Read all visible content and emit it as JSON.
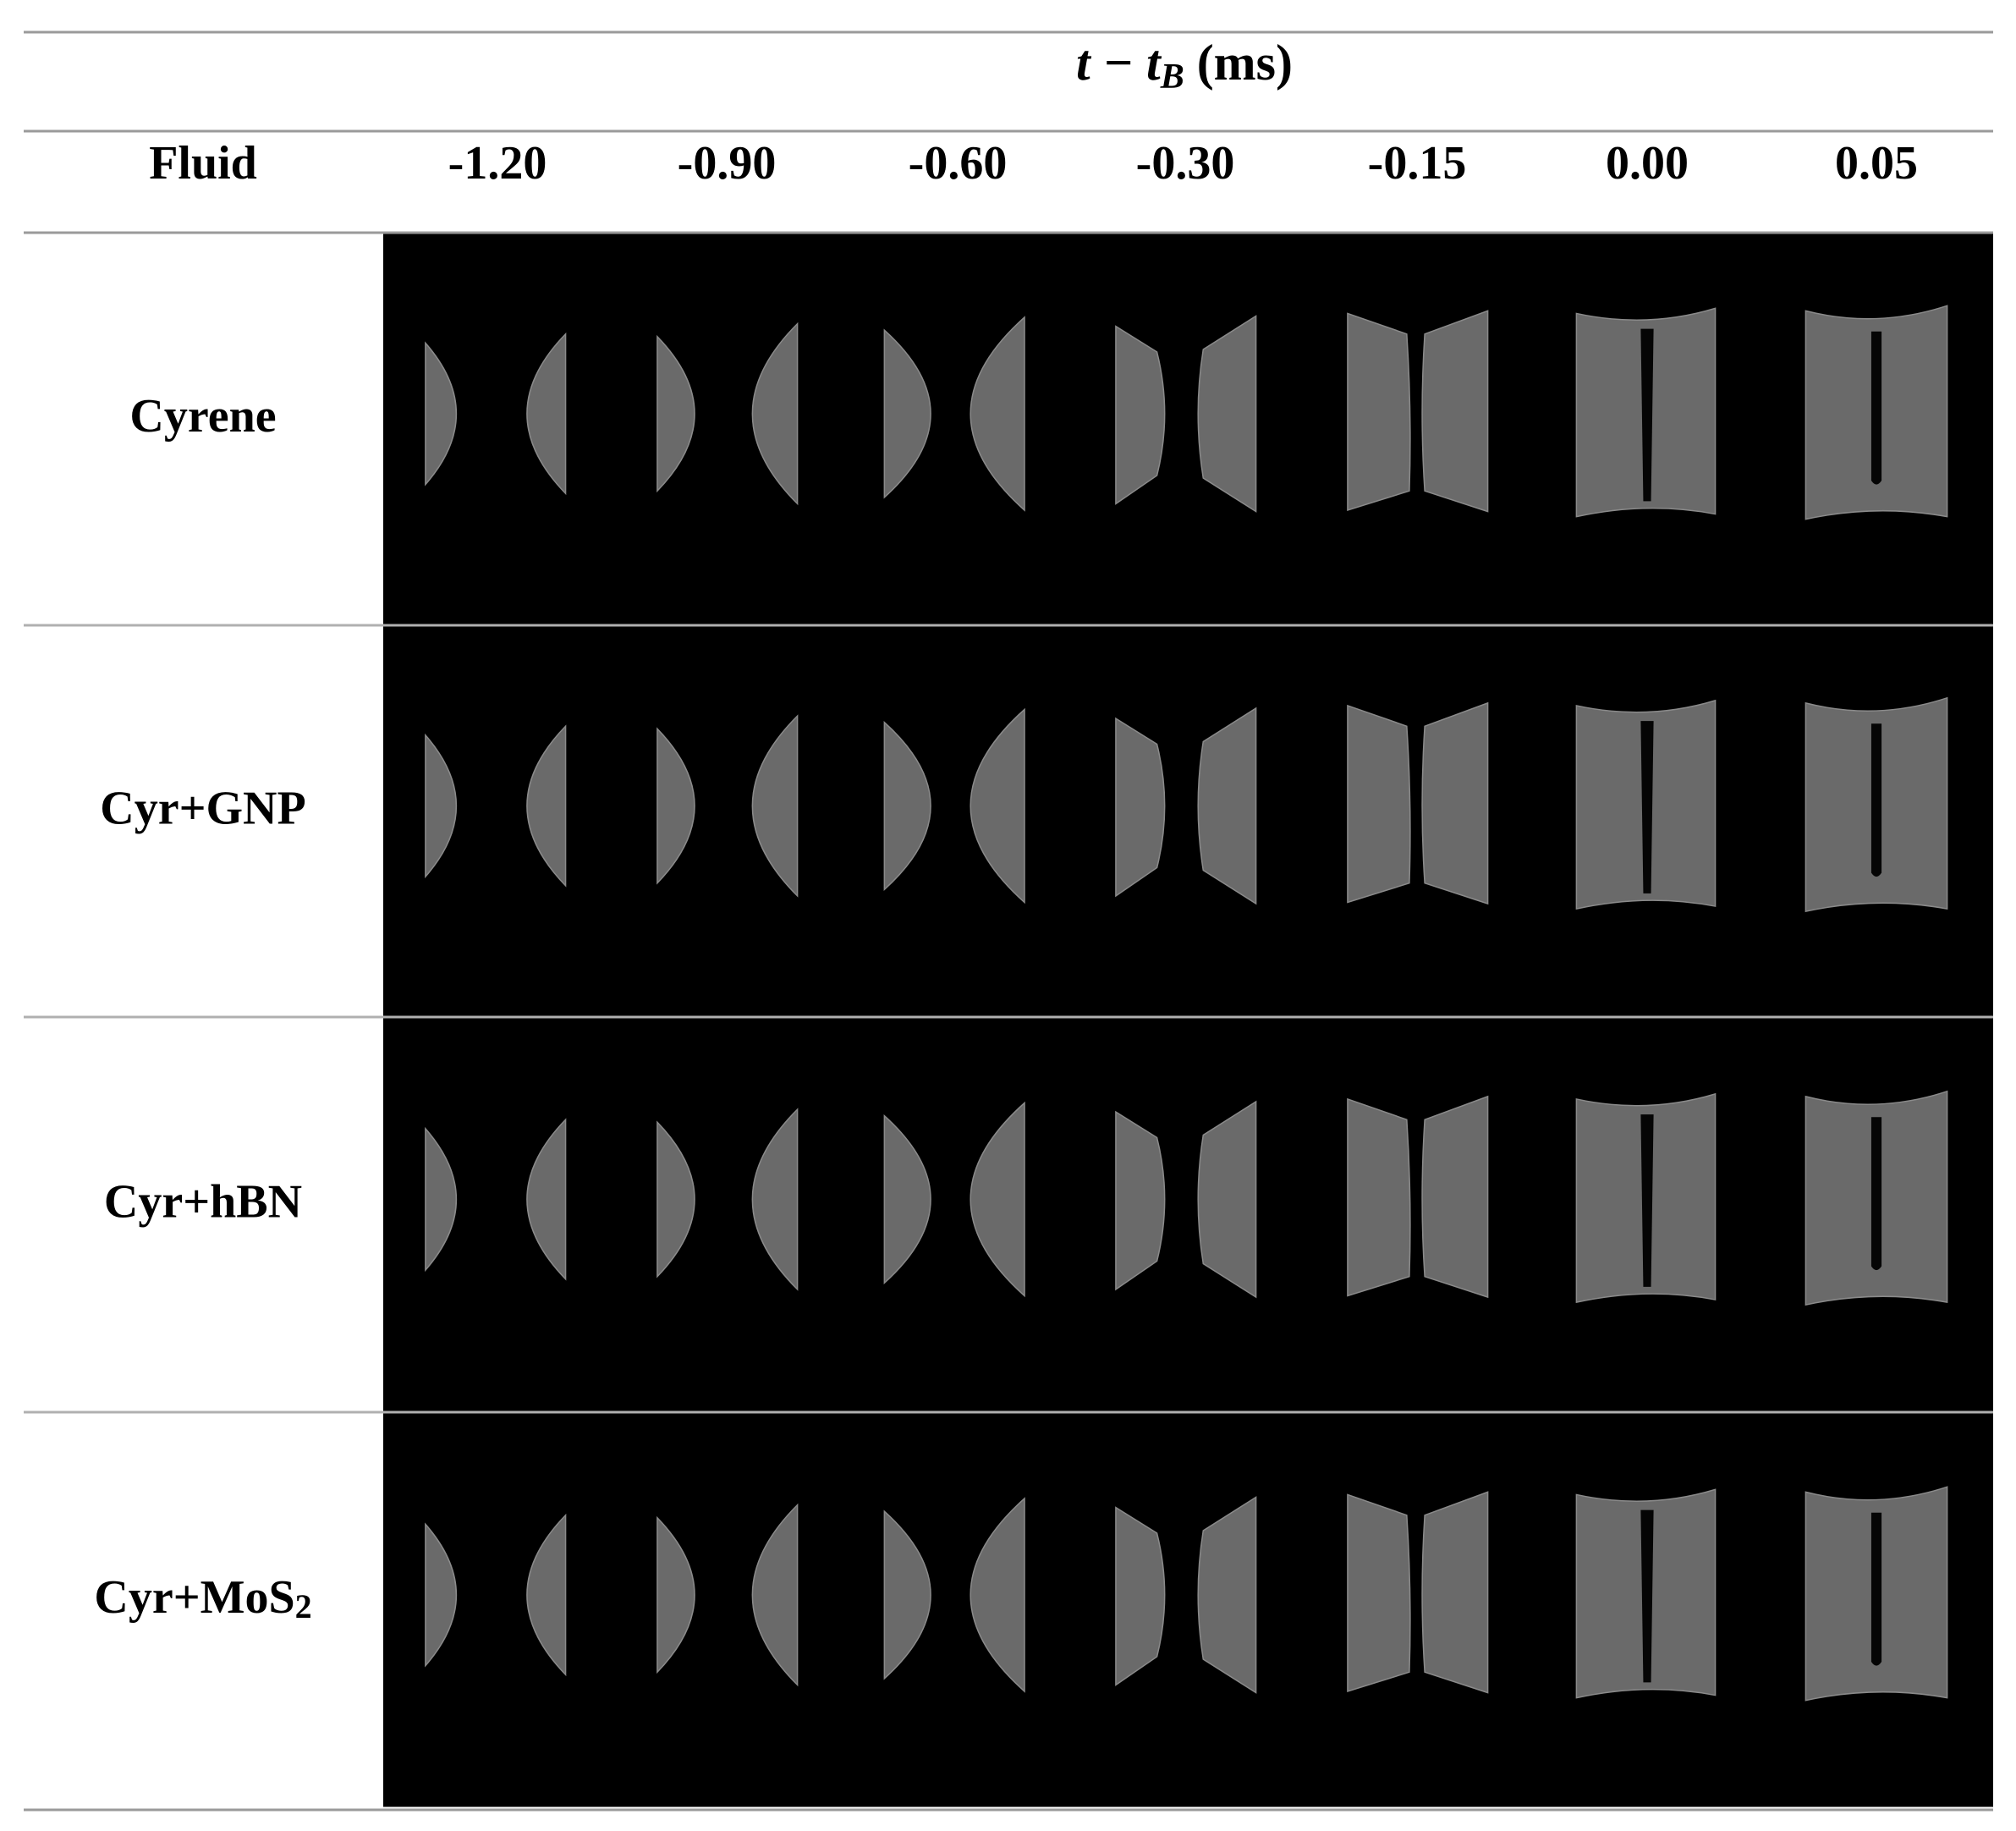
{
  "header": {
    "title": {
      "main": "t − t",
      "sub": "B",
      "rest": " (ms)"
    },
    "fluid_label": "Fluid",
    "times": [
      "-1.20",
      "-0.90",
      "-0.60",
      "-0.30",
      "-0.15",
      "0.00",
      "0.05"
    ]
  },
  "rows": [
    {
      "label": [
        "Cyrene"
      ]
    },
    {
      "label": [
        "Cyr+GNP"
      ]
    },
    {
      "label": [
        "Cyr+hBN"
      ]
    },
    {
      "label": [
        "Cyr+MoS",
        "2"
      ]
    }
  ]
}
